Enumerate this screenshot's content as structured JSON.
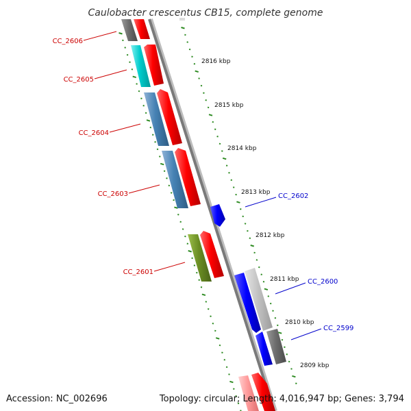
{
  "title": "Caulobacter crescentus CB15, complete genome",
  "footer": {
    "accession": "Accession: NC_002696",
    "summary": "Topology: circular; Length: 4,016,947 bp; Genes: 3,794"
  },
  "colors": {
    "reverse_label": "#cc0000",
    "forward_label": "#0000cc",
    "backbone": "#7a7a7a",
    "tick": "#2e8b22",
    "cds_red": "#ff0000",
    "blue": "#0000ff"
  },
  "scale_labels": [
    "2816 kbp",
    "2815 kbp",
    "2814 kbp",
    "2813 kbp",
    "2812 kbp",
    "2811 kbp",
    "2810 kbp",
    "2809 kbp"
  ],
  "gene_labels": {
    "left": [
      "CC_2606",
      "CC_2605",
      "CC_2604",
      "CC_2603",
      "CC_2601"
    ],
    "right": [
      "CC_2602",
      "CC_2600",
      "CC_2599"
    ]
  }
}
